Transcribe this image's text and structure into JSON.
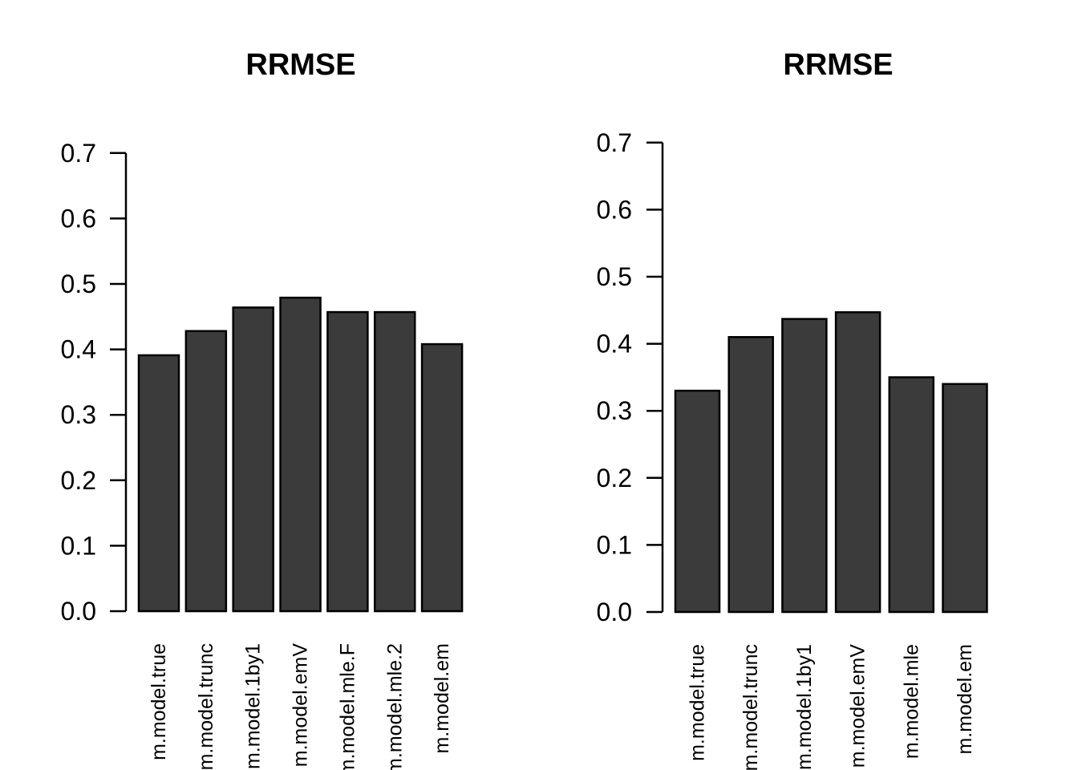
{
  "figure": {
    "background_color": "#ffffff",
    "text_color": "#000000",
    "axis_color": "#000000"
  },
  "chart_data": [
    {
      "type": "bar",
      "title": "RRMSE",
      "categories": [
        "m.model.true",
        "m.model.trunc",
        "m.model.1by1",
        "m.model.emV",
        "m.model.mle.F",
        "m.model.mle.2",
        "m.model.em"
      ],
      "values": [
        0.391,
        0.428,
        0.464,
        0.479,
        0.457,
        0.457,
        0.408
      ],
      "xlabel": "",
      "ylabel": "",
      "ylim": [
        0,
        0.7
      ],
      "yticks": [
        0.0,
        0.1,
        0.2,
        0.3,
        0.4,
        0.5,
        0.6,
        0.7
      ],
      "ytick_labels": [
        "0.0",
        "0.1",
        "0.2",
        "0.3",
        "0.4",
        "0.5",
        "0.6",
        "0.7"
      ],
      "grid": false,
      "legend": null,
      "bar_color": "#3b3b3b",
      "bar_border_color": "#000000",
      "x_label_orientation": "vertical"
    },
    {
      "type": "bar",
      "title": "RRMSE",
      "categories": [
        "m.model.true",
        "m.model.trunc",
        "m.model.1by1",
        "m.model.emV",
        "m.model.mle",
        "m.model.em"
      ],
      "values": [
        0.33,
        0.41,
        0.437,
        0.447,
        0.35,
        0.34
      ],
      "xlabel": "",
      "ylabel": "",
      "ylim": [
        0,
        0.7
      ],
      "yticks": [
        0.0,
        0.1,
        0.2,
        0.3,
        0.4,
        0.5,
        0.6,
        0.7
      ],
      "ytick_labels": [
        "0.0",
        "0.1",
        "0.2",
        "0.3",
        "0.4",
        "0.5",
        "0.6",
        "0.7"
      ],
      "grid": false,
      "legend": null,
      "bar_color": "#3b3b3b",
      "bar_border_color": "#000000",
      "x_label_orientation": "vertical"
    }
  ]
}
